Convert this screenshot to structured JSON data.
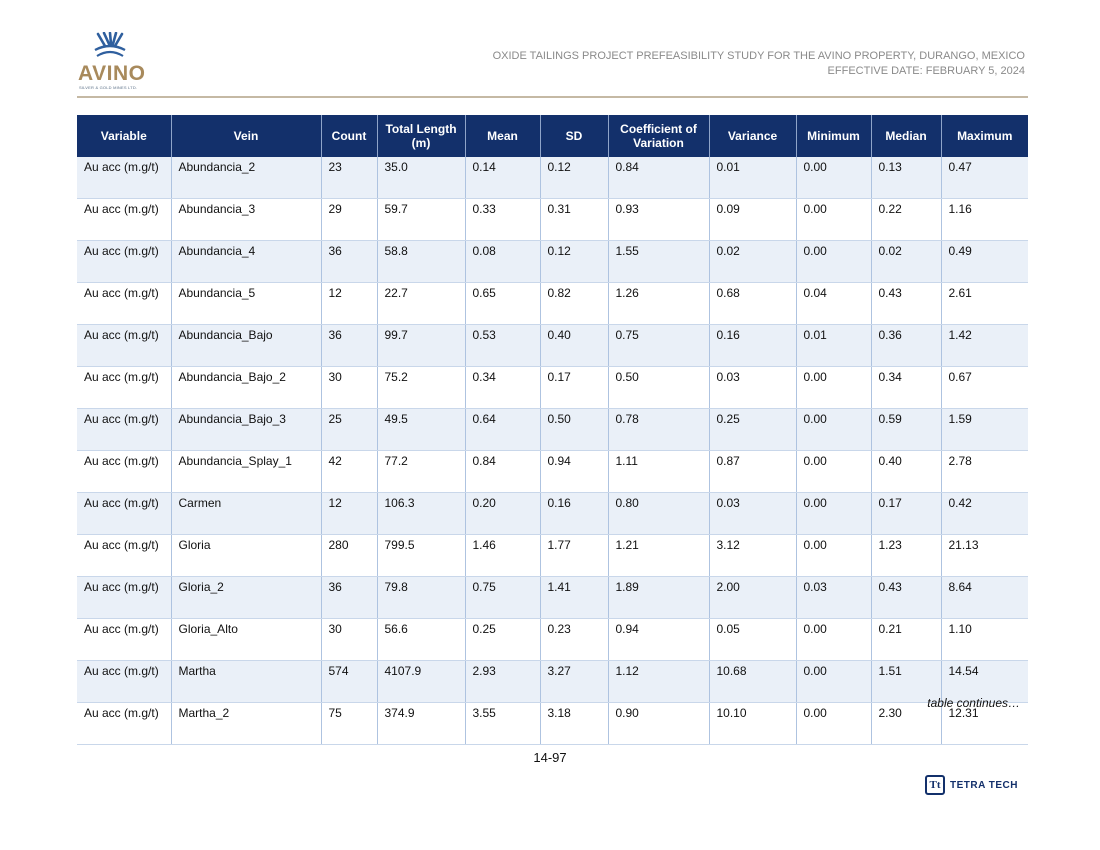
{
  "header": {
    "logo_text": "AVINO",
    "logo_subtext": "SILVER & GOLD MINES LTD.",
    "title_line1": "OXIDE TAILINGS PROJECT PREFEASIBILITY STUDY FOR THE AVINO PROPERTY, DURANGO, MEXICO",
    "title_line2": "EFFECTIVE DATE: FEBRUARY 5, 2024"
  },
  "colors": {
    "header_fill": "#13306b",
    "stripe_fill": "#eaf0f8",
    "logo_gold": "#a88a5c",
    "logo_blue": "#2f5f9e"
  },
  "table": {
    "columns": [
      "Variable",
      "Vein",
      "Count",
      "Total Length (m)",
      "Mean",
      "SD",
      "Coefficient of Variation",
      "Variance",
      "Minimum",
      "Median",
      "Maximum"
    ],
    "rows": [
      [
        "Au acc (m.g/t)",
        "Abundancia_2",
        "23",
        "35.0",
        "0.14",
        "0.12",
        "0.84",
        "0.01",
        "0.00",
        "0.13",
        "0.47"
      ],
      [
        "Au acc (m.g/t)",
        "Abundancia_3",
        "29",
        "59.7",
        "0.33",
        "0.31",
        "0.93",
        "0.09",
        "0.00",
        "0.22",
        "1.16"
      ],
      [
        "Au acc (m.g/t)",
        "Abundancia_4",
        "36",
        "58.8",
        "0.08",
        "0.12",
        "1.55",
        "0.02",
        "0.00",
        "0.02",
        "0.49"
      ],
      [
        "Au acc (m.g/t)",
        "Abundancia_5",
        "12",
        "22.7",
        "0.65",
        "0.82",
        "1.26",
        "0.68",
        "0.04",
        "0.43",
        "2.61"
      ],
      [
        "Au acc (m.g/t)",
        "Abundancia_Bajo",
        "36",
        "99.7",
        "0.53",
        "0.40",
        "0.75",
        "0.16",
        "0.01",
        "0.36",
        "1.42"
      ],
      [
        "Au acc (m.g/t)",
        "Abundancia_Bajo_2",
        "30",
        "75.2",
        "0.34",
        "0.17",
        "0.50",
        "0.03",
        "0.00",
        "0.34",
        "0.67"
      ],
      [
        "Au acc (m.g/t)",
        "Abundancia_Bajo_3",
        "25",
        "49.5",
        "0.64",
        "0.50",
        "0.78",
        "0.25",
        "0.00",
        "0.59",
        "1.59"
      ],
      [
        "Au acc (m.g/t)",
        "Abundancia_Splay_1",
        "42",
        "77.2",
        "0.84",
        "0.94",
        "1.11",
        "0.87",
        "0.00",
        "0.40",
        "2.78"
      ],
      [
        "Au acc (m.g/t)",
        "Carmen",
        "12",
        "106.3",
        "0.20",
        "0.16",
        "0.80",
        "0.03",
        "0.00",
        "0.17",
        "0.42"
      ],
      [
        "Au acc (m.g/t)",
        "Gloria",
        "280",
        "799.5",
        "1.46",
        "1.77",
        "1.21",
        "3.12",
        "0.00",
        "1.23",
        "21.13"
      ],
      [
        "Au acc (m.g/t)",
        "Gloria_2",
        "36",
        "79.8",
        "0.75",
        "1.41",
        "1.89",
        "2.00",
        "0.03",
        "0.43",
        "8.64"
      ],
      [
        "Au acc (m.g/t)",
        "Gloria_Alto",
        "30",
        "56.6",
        "0.25",
        "0.23",
        "0.94",
        "0.05",
        "0.00",
        "0.21",
        "1.10"
      ],
      [
        "Au acc (m.g/t)",
        "Martha",
        "574",
        "4107.9",
        "2.93",
        "3.27",
        "1.12",
        "10.68",
        "0.00",
        "1.51",
        "14.54"
      ],
      [
        "Au acc (m.g/t)",
        "Martha_2",
        "75",
        "374.9",
        "3.55",
        "3.18",
        "0.90",
        "10.10",
        "0.00",
        "2.30",
        "12.31"
      ]
    ],
    "continues_note": "table continues…"
  },
  "footer": {
    "page_number": "14-97",
    "company_logo_mark": "Tt",
    "company_name": "TETRA TECH"
  }
}
